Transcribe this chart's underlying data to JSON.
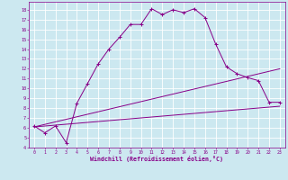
{
  "xlabel": "Windchill (Refroidissement éolien,°C)",
  "bg_color": "#cce8f0",
  "grid_color": "#ffffff",
  "line_color": "#880088",
  "xlim": [
    -0.5,
    23.5
  ],
  "ylim": [
    4,
    18.8
  ],
  "xticks": [
    0,
    1,
    2,
    3,
    4,
    5,
    6,
    7,
    8,
    9,
    10,
    11,
    12,
    13,
    14,
    15,
    16,
    17,
    18,
    19,
    20,
    21,
    22,
    23
  ],
  "yticks": [
    4,
    5,
    6,
    7,
    8,
    9,
    10,
    11,
    12,
    13,
    14,
    15,
    16,
    17,
    18
  ],
  "series1_x": [
    0,
    1,
    2,
    3,
    4,
    5,
    6,
    7,
    8,
    9,
    10,
    11,
    12,
    13,
    14,
    15,
    16,
    17,
    18,
    19,
    20,
    21,
    22,
    23
  ],
  "series1_y": [
    6.2,
    5.5,
    6.2,
    4.5,
    8.5,
    10.5,
    12.5,
    14.0,
    15.2,
    16.5,
    16.5,
    18.1,
    17.5,
    18.0,
    17.7,
    18.1,
    17.2,
    14.5,
    12.2,
    11.5,
    11.1,
    10.8,
    8.6,
    8.6
  ],
  "series2_x": [
    0,
    23
  ],
  "series2_y": [
    6.1,
    8.2
  ],
  "series3_x": [
    0,
    23
  ],
  "series3_y": [
    6.1,
    12.0
  ]
}
